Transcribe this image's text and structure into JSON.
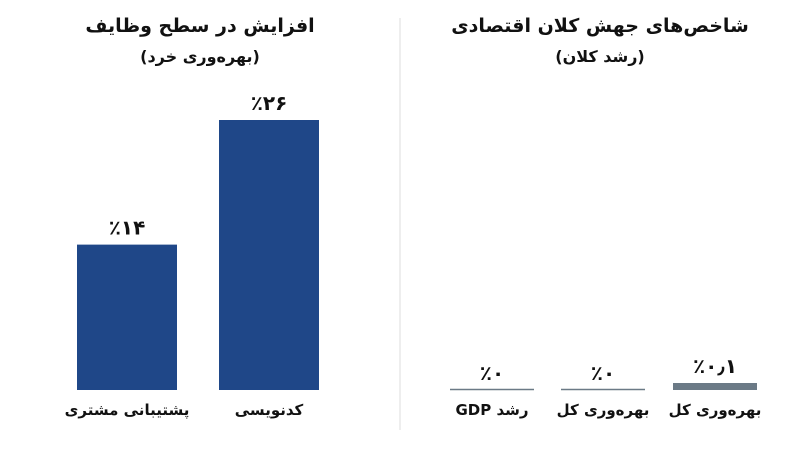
{
  "chart_data": [
    {
      "type": "bar",
      "title": "افزایش در سطح وظایف",
      "subtitle": "(بهره‌وری خرد)",
      "categories": [
        "کدنویسی",
        "پشتیبانی مشتری"
      ],
      "values": [
        26,
        14
      ],
      "value_labels": [
        "٪۲۶",
        "٪۱۴"
      ],
      "color": "#1f4788"
    },
    {
      "type": "bar",
      "title": "شاخص‌های جهش کلان اقتصادی",
      "subtitle": "(رشد کلان)",
      "categories": [
        "بهره‌وری کل",
        "بهره‌وری کل",
        "رشد GDP"
      ],
      "values": [
        0.1,
        0,
        0
      ],
      "value_labels": [
        "٪۰٫۱",
        "٪۰",
        "٪۰"
      ],
      "color": "#6b7a86"
    }
  ]
}
